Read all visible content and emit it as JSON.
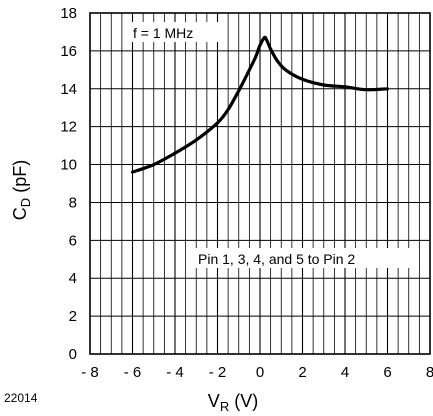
{
  "chart_data": {
    "type": "line",
    "xlabel_main": "V",
    "xlabel_sub": "R",
    "xlabel_unit": " (V)",
    "ylabel_main": "C",
    "ylabel_sub": "D",
    "ylabel_unit": " (pF)",
    "xlim": [
      -8,
      8
    ],
    "ylim": [
      0,
      18
    ],
    "x_ticks": [
      -8,
      -6,
      -4,
      -2,
      0,
      2,
      4,
      6,
      8
    ],
    "x_tick_labels": [
      "- 8",
      "- 6",
      "- 4",
      "- 2",
      "0",
      "2",
      "4",
      "6",
      "8"
    ],
    "y_ticks": [
      0,
      2,
      4,
      6,
      8,
      10,
      12,
      14,
      16,
      18
    ],
    "y_tick_labels": [
      "0",
      "2",
      "4",
      "6",
      "8",
      "10",
      "12",
      "14",
      "16",
      "18"
    ],
    "grid": true,
    "minor_x_step": 0.5,
    "series": [
      {
        "x": [
          -6.0,
          -5.0,
          -4.0,
          -3.0,
          -2.0,
          -1.5,
          -1.0,
          -0.5,
          -0.2,
          0.0,
          0.2,
          0.3,
          0.5,
          0.8,
          1.2,
          2.0,
          3.0,
          4.0,
          5.0,
          6.0
        ],
        "y": [
          9.6,
          10.0,
          10.6,
          11.3,
          12.2,
          12.9,
          13.9,
          15.0,
          15.7,
          16.3,
          16.7,
          16.6,
          16.1,
          15.5,
          15.0,
          14.5,
          14.2,
          14.1,
          13.95,
          14.0
        ]
      }
    ],
    "annotations": [
      "f = 1 MHz",
      "Pin 1, 3, 4, and 5 to Pin 2"
    ]
  },
  "figure_id": "22014",
  "colors": {
    "line": "#000000",
    "grid": "#000000",
    "background": "#ffffff"
  }
}
